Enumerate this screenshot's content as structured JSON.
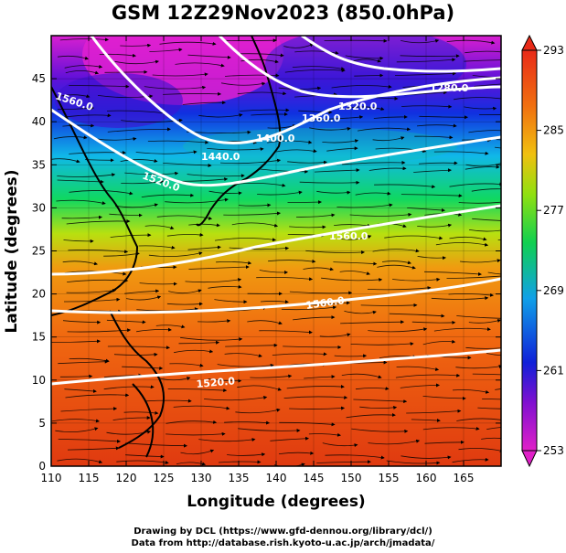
{
  "title": "GSM 12Z29Nov2023 (850.0hPa)",
  "axes": {
    "xlabel": "Longitude (degrees)",
    "ylabel": "Latitude  (degrees)",
    "x_ticks": [
      "110",
      "115",
      "120",
      "125",
      "130",
      "135",
      "140",
      "145",
      "150",
      "155",
      "160",
      "165"
    ],
    "y_ticks": [
      "0",
      "5",
      "10",
      "15",
      "20",
      "25",
      "30",
      "35",
      "40",
      "45"
    ],
    "x_range": [
      110,
      170
    ],
    "y_range": [
      0,
      50
    ]
  },
  "colorbar": {
    "ticks": [
      "253",
      "261",
      "269",
      "277",
      "285",
      "293"
    ],
    "range": [
      253,
      293
    ]
  },
  "contour_labels": [
    "1560.0",
    "1520.0",
    "1440.0",
    "1400.0",
    "1360.0",
    "1320.0",
    "1280.0",
    "1560.0",
    "1560.0",
    "1520.0"
  ],
  "credits": {
    "line1": "Drawing by DCL (https://www.gfd-dennou.org/library/dcl/)",
    "line2": "Data from http://database.rish.kyoto-u.ac.jp/arch/jmadata/"
  }
}
